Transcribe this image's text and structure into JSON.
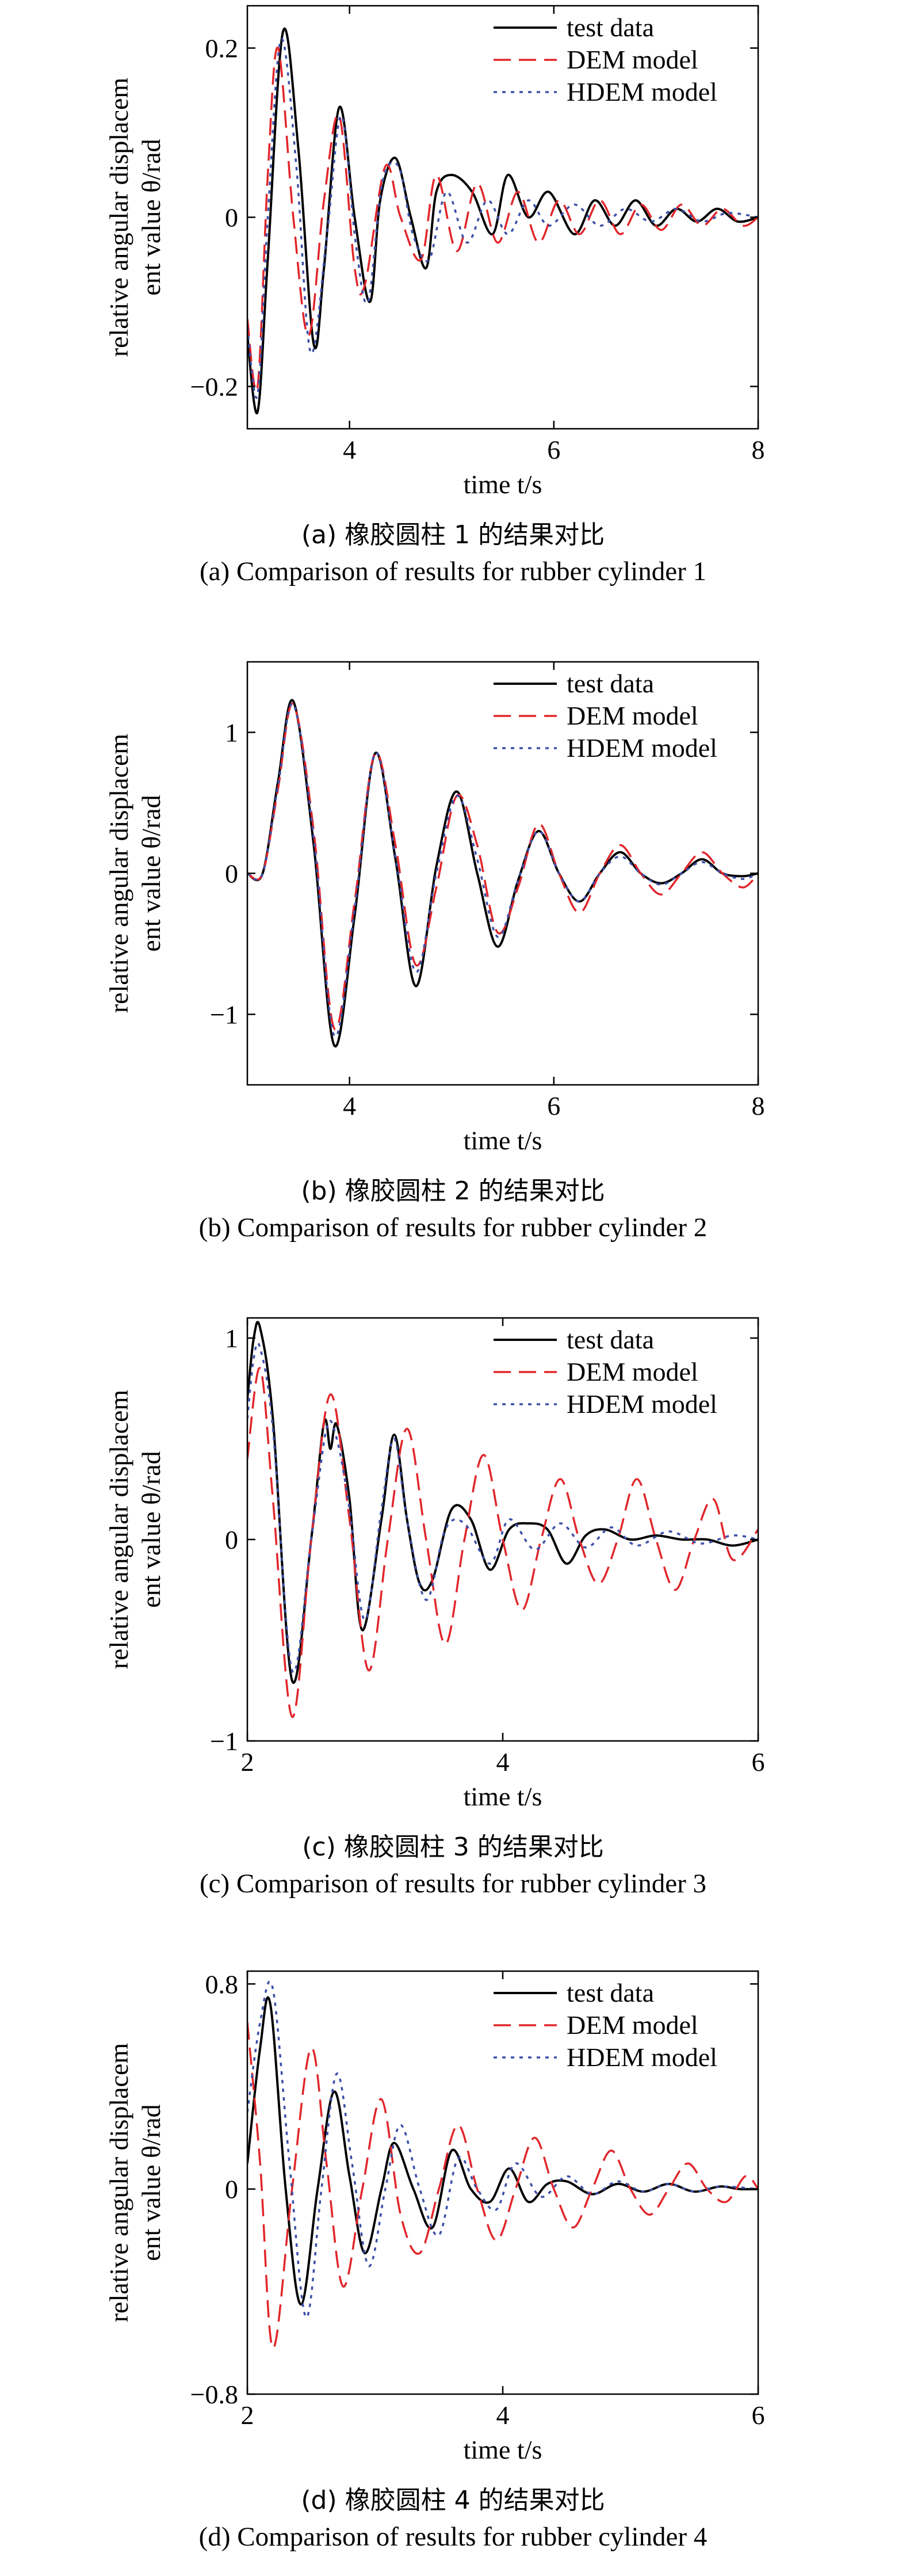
{
  "chart_data": [
    {
      "type": "line",
      "caption_cn": "(a) 橡胶圆柱 1 的结果对比",
      "caption_en": "(a) Comparison of results for rubber cylinder 1",
      "xlabel": "time t/s",
      "ylabel_line1": "relative angular displacem",
      "ylabel_line2": "ent value θ/rad",
      "xlim": [
        3,
        8
      ],
      "ylim": [
        -0.25,
        0.25
      ],
      "xticks": [
        {
          "v": 4,
          "label": "4"
        },
        {
          "v": 6,
          "label": "6"
        },
        {
          "v": 8,
          "label": "8"
        }
      ],
      "yticks": [
        {
          "v": 0.2,
          "label": "0.2"
        },
        {
          "v": 0,
          "label": "0"
        },
        {
          "v": -0.2,
          "label": "−0.2"
        }
      ],
      "legend_position": "top-right",
      "series": [
        {
          "name": "test data",
          "color": "#000000",
          "dash": "solid",
          "x": [
            3.0,
            3.1,
            3.2,
            3.35,
            3.5,
            3.65,
            3.75,
            3.9,
            4.05,
            4.2,
            4.3,
            4.45,
            4.6,
            4.75,
            4.85,
            5.0,
            5.2,
            5.4,
            5.55,
            5.75,
            5.95,
            6.2,
            6.4,
            6.6,
            6.8,
            7.0,
            7.2,
            7.4,
            7.6,
            7.8,
            8.0
          ],
          "y": [
            -0.14,
            -0.23,
            -0.05,
            0.22,
            0.08,
            -0.15,
            -0.06,
            0.13,
            0.0,
            -0.1,
            0.02,
            0.07,
            0.0,
            -0.06,
            0.03,
            0.05,
            0.03,
            -0.02,
            0.05,
            0.0,
            0.03,
            -0.02,
            0.02,
            -0.01,
            0.02,
            -0.01,
            0.01,
            -0.005,
            0.01,
            -0.005,
            0.0
          ]
        },
        {
          "name": "DEM model",
          "color": "#e0262b",
          "dash": "long-dash",
          "x": [
            3.0,
            3.1,
            3.2,
            3.3,
            3.45,
            3.6,
            3.75,
            3.9,
            4.05,
            4.15,
            4.35,
            4.5,
            4.7,
            4.85,
            5.05,
            5.25,
            5.45,
            5.65,
            5.85,
            6.05,
            6.25,
            6.45,
            6.65,
            6.85,
            7.05,
            7.25,
            7.45,
            7.65,
            7.85,
            8.0
          ],
          "y": [
            -0.12,
            -0.2,
            0.05,
            0.2,
            0.0,
            -0.14,
            0.02,
            0.12,
            -0.06,
            -0.08,
            0.06,
            0.0,
            -0.05,
            0.05,
            -0.04,
            0.04,
            -0.03,
            0.03,
            -0.03,
            0.02,
            -0.02,
            0.02,
            -0.02,
            0.015,
            -0.015,
            0.015,
            -0.01,
            0.01,
            -0.01,
            0.0
          ]
        },
        {
          "name": "HDEM model",
          "color": "#3c4fa8",
          "dash": "dotted",
          "x": [
            3.0,
            3.1,
            3.2,
            3.33,
            3.48,
            3.62,
            3.78,
            3.92,
            4.06,
            4.18,
            4.32,
            4.48,
            4.62,
            4.78,
            4.95,
            5.15,
            5.35,
            5.55,
            5.75,
            5.95,
            6.2,
            6.45,
            6.7,
            6.95,
            7.2,
            7.45,
            7.7,
            8.0
          ],
          "y": [
            -0.13,
            -0.21,
            0.0,
            0.21,
            0.06,
            -0.16,
            -0.02,
            0.12,
            -0.03,
            -0.1,
            0.04,
            0.06,
            -0.02,
            -0.05,
            0.03,
            -0.03,
            0.02,
            -0.02,
            0.02,
            -0.01,
            0.015,
            -0.01,
            0.01,
            -0.005,
            0.01,
            -0.005,
            0.005,
            0.0
          ]
        }
      ]
    },
    {
      "type": "line",
      "caption_cn": "(b) 橡胶圆柱 2 的结果对比",
      "caption_en": "(b) Comparison of results for rubber cylinder 2",
      "xlabel": "time t/s",
      "ylabel_line1": "relative angular displacem",
      "ylabel_line2": "ent value θ/rad",
      "xlim": [
        3,
        8
      ],
      "ylim": [
        -1.5,
        1.5
      ],
      "xticks": [
        {
          "v": 4,
          "label": "4"
        },
        {
          "v": 6,
          "label": "6"
        },
        {
          "v": 8,
          "label": "8"
        }
      ],
      "yticks": [
        {
          "v": 1,
          "label": "1"
        },
        {
          "v": 0,
          "label": "0"
        },
        {
          "v": -1,
          "label": "−1"
        }
      ],
      "legend_position": "top-right",
      "series": [
        {
          "name": "test data",
          "color": "#000000",
          "dash": "solid",
          "x": [
            3.0,
            3.15,
            3.3,
            3.45,
            3.65,
            3.85,
            4.05,
            4.25,
            4.45,
            4.65,
            4.85,
            5.05,
            5.25,
            5.45,
            5.65,
            5.85,
            6.05,
            6.25,
            6.45,
            6.65,
            6.85,
            7.05,
            7.25,
            7.45,
            7.65,
            7.85,
            8.0
          ],
          "y": [
            0.0,
            0.0,
            0.65,
            1.22,
            0.2,
            -1.22,
            -0.3,
            0.85,
            0.1,
            -0.8,
            0.05,
            0.58,
            0.0,
            -0.52,
            -0.05,
            0.3,
            0.0,
            -0.2,
            0.0,
            0.15,
            0.0,
            -0.07,
            0.0,
            0.1,
            0.0,
            -0.02,
            0.0
          ]
        },
        {
          "name": "DEM model",
          "color": "#e0262b",
          "dash": "long-dash",
          "x": [
            3.0,
            3.15,
            3.3,
            3.45,
            3.65,
            3.85,
            4.05,
            4.25,
            4.45,
            4.65,
            4.85,
            5.05,
            5.25,
            5.45,
            5.65,
            5.85,
            6.05,
            6.25,
            6.45,
            6.65,
            6.85,
            7.05,
            7.25,
            7.45,
            7.65,
            7.85,
            8.0
          ],
          "y": [
            0.0,
            0.0,
            0.6,
            1.2,
            0.3,
            -1.1,
            -0.2,
            0.85,
            0.2,
            -0.65,
            -0.1,
            0.55,
            0.2,
            -0.42,
            -0.1,
            0.35,
            0.0,
            -0.28,
            0.0,
            0.2,
            0.0,
            -0.15,
            0.0,
            0.15,
            0.0,
            -0.1,
            0.0
          ]
        },
        {
          "name": "HDEM model",
          "color": "#3c4fa8",
          "dash": "dotted",
          "x": [
            3.0,
            3.15,
            3.3,
            3.45,
            3.65,
            3.85,
            4.05,
            4.25,
            4.45,
            4.65,
            4.85,
            5.05,
            5.25,
            5.45,
            5.65,
            5.85,
            6.05,
            6.25,
            6.45,
            6.65,
            6.85,
            7.05,
            7.25,
            7.45,
            7.65,
            7.85,
            8.0
          ],
          "y": [
            0.0,
            0.0,
            0.62,
            1.2,
            0.25,
            -1.15,
            -0.25,
            0.85,
            0.12,
            -0.7,
            0.0,
            0.55,
            0.1,
            -0.45,
            -0.05,
            0.3,
            0.0,
            -0.2,
            0.0,
            0.12,
            0.0,
            -0.08,
            0.0,
            0.08,
            0.0,
            -0.04,
            0.0
          ]
        }
      ]
    },
    {
      "type": "line",
      "caption_cn": "(c) 橡胶圆柱 3 的结果对比",
      "caption_en": "(c) Comparison of results for rubber cylinder 3",
      "xlabel": "time t/s",
      "ylabel_line1": "relative angular displacem",
      "ylabel_line2": "ent value θ/rad",
      "xlim": [
        2,
        6
      ],
      "ylim": [
        -1,
        1.1
      ],
      "xticks": [
        {
          "v": 2,
          "label": "2"
        },
        {
          "v": 4,
          "label": "4"
        },
        {
          "v": 6,
          "label": "6"
        }
      ],
      "yticks": [
        {
          "v": 1,
          "label": "1"
        },
        {
          "v": 0,
          "label": "0"
        },
        {
          "v": -1,
          "label": "−1"
        }
      ],
      "legend_position": "top-right",
      "series": [
        {
          "name": "test data",
          "color": "#000000",
          "dash": "solid",
          "x": [
            2.0,
            2.05,
            2.1,
            2.2,
            2.35,
            2.5,
            2.6,
            2.65,
            2.7,
            2.8,
            2.9,
            3.05,
            3.15,
            3.25,
            3.35,
            3.45,
            3.6,
            3.75,
            3.9,
            4.05,
            4.2,
            4.35,
            4.5,
            4.65,
            4.8,
            5.0,
            5.2,
            5.4,
            5.6,
            5.8,
            6.0
          ],
          "y": [
            0.7,
            1.0,
            1.05,
            0.6,
            -0.7,
            0.0,
            0.58,
            0.45,
            0.57,
            0.2,
            -0.45,
            0.1,
            0.52,
            0.1,
            -0.22,
            -0.2,
            0.15,
            0.1,
            -0.15,
            0.05,
            0.08,
            0.05,
            -0.12,
            0.02,
            0.05,
            0.0,
            0.02,
            0.0,
            0.0,
            -0.03,
            0.0
          ]
        },
        {
          "name": "DEM model",
          "color": "#e0262b",
          "dash": "long-dash",
          "x": [
            2.0,
            2.1,
            2.2,
            2.35,
            2.5,
            2.65,
            2.8,
            2.95,
            3.1,
            3.25,
            3.4,
            3.55,
            3.7,
            3.85,
            4.0,
            4.15,
            4.3,
            4.45,
            4.6,
            4.75,
            4.9,
            5.05,
            5.2,
            5.35,
            5.5,
            5.65,
            5.8,
            6.0
          ],
          "y": [
            0.4,
            0.85,
            0.2,
            -0.88,
            0.0,
            0.72,
            0.1,
            -0.65,
            0.0,
            0.55,
            0.0,
            -0.52,
            0.0,
            0.42,
            0.0,
            -0.35,
            0.0,
            0.3,
            0.0,
            -0.22,
            0.0,
            0.3,
            0.0,
            -0.25,
            0.0,
            0.2,
            -0.1,
            0.05
          ]
        },
        {
          "name": "HDEM model",
          "color": "#3c4fa8",
          "dash": "dotted",
          "x": [
            2.0,
            2.05,
            2.1,
            2.2,
            2.35,
            2.5,
            2.62,
            2.7,
            2.8,
            2.92,
            3.05,
            3.15,
            3.25,
            3.4,
            3.55,
            3.7,
            3.9,
            4.05,
            4.25,
            4.45,
            4.65,
            4.85,
            5.05,
            5.3,
            5.55,
            5.8,
            6.0
          ],
          "y": [
            0.6,
            0.9,
            0.95,
            0.55,
            -0.65,
            0.0,
            0.55,
            0.5,
            0.15,
            -0.4,
            0.15,
            0.5,
            0.1,
            -0.3,
            0.05,
            0.08,
            -0.12,
            0.1,
            -0.05,
            0.08,
            -0.04,
            0.06,
            -0.03,
            0.04,
            -0.02,
            0.02,
            0.0
          ]
        }
      ]
    },
    {
      "type": "line",
      "caption_cn": "(d) 橡胶圆柱 4 的结果对比",
      "caption_en": "(d) Comparison of results for rubber cylinder 4",
      "xlabel": "time t/s",
      "ylabel_line1": "relative angular displacem",
      "ylabel_line2": "ent value θ/rad",
      "xlim": [
        2,
        6
      ],
      "ylim": [
        -0.8,
        0.85
      ],
      "xticks": [
        {
          "v": 2,
          "label": "2"
        },
        {
          "v": 4,
          "label": "4"
        },
        {
          "v": 6,
          "label": "6"
        }
      ],
      "yticks": [
        {
          "v": 0.8,
          "label": "0.8"
        },
        {
          "v": 0,
          "label": "0"
        },
        {
          "v": -0.8,
          "label": "−0.8"
        }
      ],
      "legend_position": "top-right",
      "series": [
        {
          "name": "test data",
          "color": "#000000",
          "dash": "solid",
          "x": [
            2.0,
            2.1,
            2.18,
            2.3,
            2.42,
            2.55,
            2.68,
            2.8,
            2.92,
            3.05,
            3.15,
            3.3,
            3.45,
            3.6,
            3.75,
            3.9,
            4.05,
            4.2,
            4.35,
            4.5,
            4.7,
            4.9,
            5.1,
            5.3,
            5.5,
            5.7,
            5.85,
            6.0
          ],
          "y": [
            0.1,
            0.55,
            0.72,
            0.0,
            -0.45,
            0.0,
            0.38,
            0.05,
            -0.25,
            0.0,
            0.18,
            0.0,
            -0.15,
            0.15,
            0.0,
            -0.05,
            0.08,
            -0.05,
            0.02,
            0.03,
            -0.02,
            0.02,
            -0.01,
            0.02,
            -0.01,
            0.01,
            0.0,
            0.0
          ]
        },
        {
          "name": "DEM model",
          "color": "#e0262b",
          "dash": "long-dash",
          "x": [
            2.0,
            2.1,
            2.2,
            2.35,
            2.5,
            2.62,
            2.75,
            2.9,
            3.05,
            3.2,
            3.35,
            3.5,
            3.65,
            3.8,
            3.95,
            4.1,
            4.25,
            4.4,
            4.55,
            4.7,
            4.85,
            5.0,
            5.15,
            5.3,
            5.45,
            5.6,
            5.75,
            5.9,
            6.0
          ],
          "y": [
            0.65,
            0.1,
            -0.62,
            0.0,
            0.55,
            0.1,
            -0.38,
            0.0,
            0.35,
            -0.1,
            -0.25,
            0.0,
            0.25,
            0.0,
            -0.2,
            0.0,
            0.2,
            0.0,
            -0.15,
            0.0,
            0.15,
            0.0,
            -0.1,
            0.0,
            0.1,
            0.0,
            -0.05,
            0.05,
            0.0
          ]
        },
        {
          "name": "HDEM model",
          "color": "#3c4fa8",
          "dash": "dotted",
          "x": [
            2.0,
            2.1,
            2.2,
            2.33,
            2.46,
            2.58,
            2.7,
            2.82,
            2.95,
            3.08,
            3.2,
            3.35,
            3.5,
            3.65,
            3.8,
            3.95,
            4.1,
            4.3,
            4.5,
            4.7,
            4.9,
            5.1,
            5.3,
            5.5,
            5.7,
            6.0
          ],
          "y": [
            0.3,
            0.65,
            0.78,
            0.1,
            -0.5,
            0.0,
            0.45,
            0.1,
            -0.3,
            0.0,
            0.25,
            0.0,
            -0.18,
            0.12,
            0.0,
            -0.08,
            0.1,
            -0.03,
            0.05,
            -0.02,
            0.03,
            -0.01,
            0.02,
            -0.01,
            0.01,
            0.0
          ]
        }
      ]
    }
  ]
}
